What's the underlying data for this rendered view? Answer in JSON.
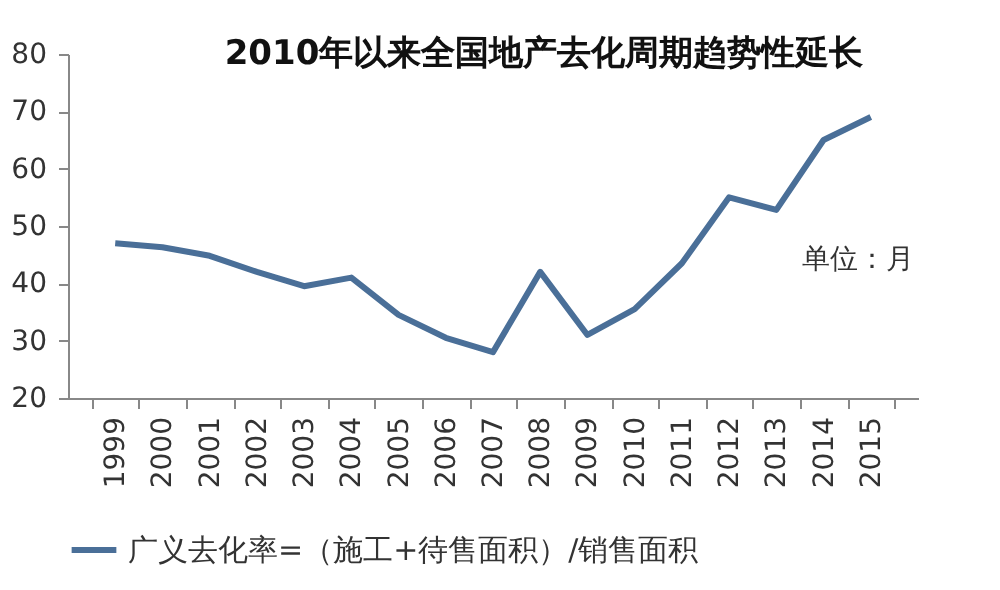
{
  "chart_data": {
    "type": "line",
    "title": "2010年以来全国地产去化周期趋势性延长",
    "categories": [
      "1999",
      "2000",
      "2001",
      "2002",
      "2003",
      "2004",
      "2005",
      "2006",
      "2007",
      "2008",
      "2009",
      "2010",
      "2011",
      "2012",
      "2013",
      "2014",
      "2015"
    ],
    "series": [
      {
        "name": "广义去化率=（施工+待售面积）/销售面积",
        "color": "#4a6f98",
        "values": [
          47,
          46.3,
          44.8,
          42,
          39.5,
          41,
          34.5,
          30.5,
          28,
          42,
          31,
          35.5,
          43.5,
          55,
          52.8,
          65,
          69
        ]
      }
    ],
    "ylim": [
      20,
      80
    ],
    "yticks": [
      20,
      30,
      40,
      50,
      60,
      70,
      80
    ],
    "grid": false,
    "legend": "bottom",
    "marker": "none",
    "line_style": "solid",
    "annotations": [
      "单位：月"
    ]
  }
}
